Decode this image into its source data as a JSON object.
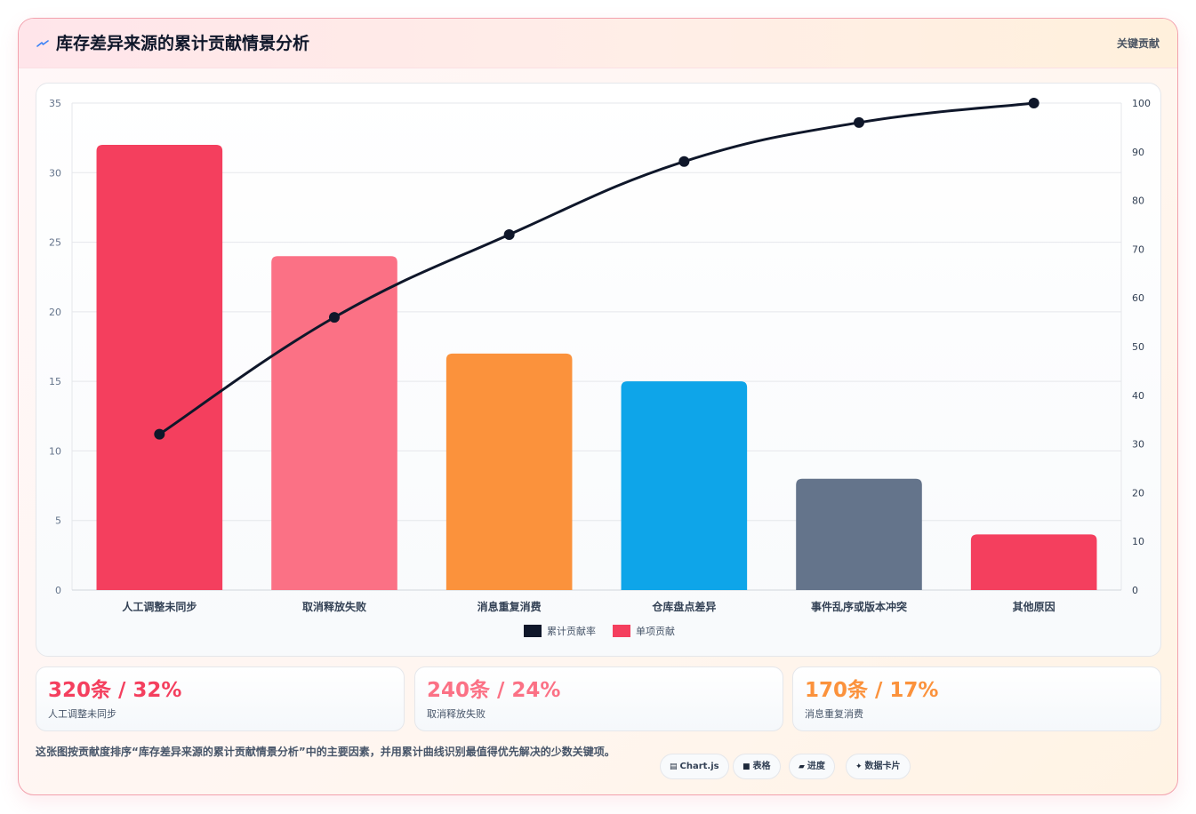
{
  "header": {
    "title": "库存差异来源的累计贡献情景分析",
    "right_label": "关键贡献",
    "icon": "lightning-icon"
  },
  "chart_data": {
    "type": "bar",
    "categories": [
      "人工调整未同步",
      "取消释放失败",
      "消息重复消费",
      "仓库盘点差异",
      "事件乱序或版本冲突",
      "其他原因"
    ],
    "series": [
      {
        "name": "单项贡献",
        "type": "bar",
        "axis": "left",
        "values": [
          32,
          24,
          17,
          15,
          8,
          4
        ],
        "colors": [
          "#f43f5e",
          "#fb7185",
          "#fb923c",
          "#0ea5e9",
          "#64748b",
          "#f43f5e"
        ]
      },
      {
        "name": "累计贡献率",
        "type": "line",
        "axis": "right",
        "values": [
          32,
          56,
          73,
          88,
          96,
          100
        ],
        "color": "#0f172a"
      }
    ],
    "y_left": {
      "min": 0,
      "max": 35,
      "ticks": [
        "0",
        "5",
        "10",
        "15",
        "20",
        "25",
        "30",
        "35"
      ]
    },
    "y_right": {
      "min": 0,
      "max": 100,
      "ticks": [
        "0",
        "10",
        "20",
        "30",
        "40",
        "50",
        "60",
        "70",
        "80",
        "90",
        "100"
      ]
    },
    "legend": {
      "position": "bottom",
      "items": [
        {
          "label": "累计贡献率",
          "color": "#0f172a"
        },
        {
          "label": "单项贡献",
          "color": "#f43f5e"
        }
      ]
    },
    "grid": true
  },
  "stats": [
    {
      "value": "320条 / 32%",
      "label": "人工调整未同步",
      "color": "#f43f5e"
    },
    {
      "value": "240条 / 24%",
      "label": "取消释放失败",
      "color": "#fb7185"
    },
    {
      "value": "170条 / 17%",
      "label": "消息重复消费",
      "color": "#fb923c"
    }
  ],
  "footer": {
    "description": "这张图按贡献度排序“库存差异来源的累计贡献情景分析”中的主要因素，并用累计曲线识别最值得优先解决的少数关键项。",
    "tags": [
      {
        "icon": "chart-icon",
        "label": "Chart.js"
      },
      {
        "icon": "table-icon",
        "label": "表格"
      },
      {
        "icon": "progress-icon",
        "label": "进度"
      },
      {
        "icon": "sparkle-icon",
        "label": "数据卡片"
      }
    ]
  }
}
